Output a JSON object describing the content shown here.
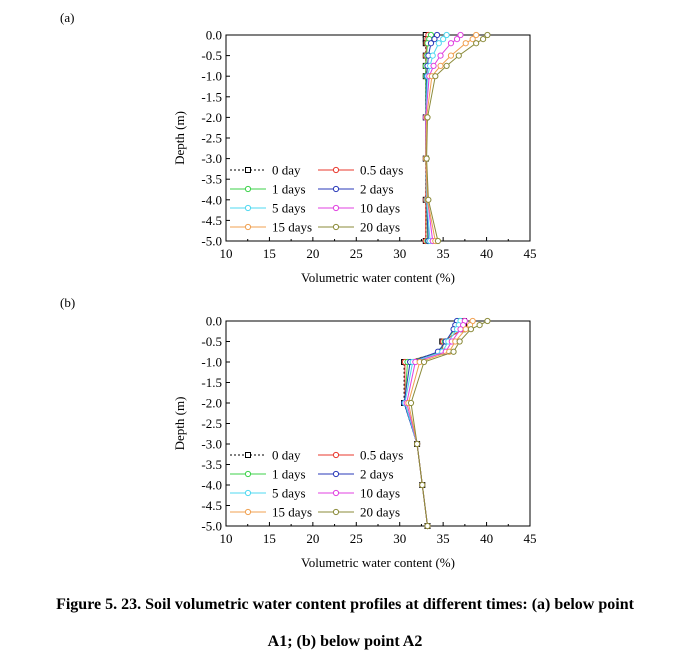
{
  "caption": {
    "line1": "Figure 5. 23. Soil volumetric water content profiles at different times: (a) below point",
    "line2": "A1; (b) below point A2"
  },
  "chart_data": [
    {
      "type": "line",
      "panel_label": "(a)",
      "xlabel": "Volumetric water content (%)",
      "ylabel": "Depth (m)",
      "xlim": [
        10,
        45
      ],
      "ylim": [
        -5.0,
        0.0
      ],
      "xticks": [
        "10",
        "15",
        "20",
        "25",
        "30",
        "35",
        "40",
        "45"
      ],
      "yticks": [
        "0.0",
        "-0.5",
        "-1.0",
        "-1.5",
        "-2.0",
        "-2.5",
        "-3.0",
        "-3.5",
        "-4.0",
        "-4.5",
        "-5.0"
      ],
      "grid": false,
      "legend_position": "bottom-left",
      "depths": [
        0.0,
        -0.1,
        -0.2,
        -0.5,
        -0.75,
        -1.0,
        -2.0,
        -3.0,
        -4.0,
        -5.0
      ],
      "series": [
        {
          "name": "0 day",
          "color": "#000000",
          "dash": "2,2",
          "values": [
            33.0,
            33.0,
            33.0,
            33.0,
            33.0,
            33.0,
            33.0,
            33.0,
            33.0,
            33.0
          ]
        },
        {
          "name": "0.5 days",
          "color": "#e8392e",
          "values": [
            33.3,
            33.2,
            33.1,
            33.0,
            33.0,
            33.0,
            33.0,
            33.0,
            33.0,
            33.0
          ]
        },
        {
          "name": "1 days",
          "color": "#3cd24a",
          "values": [
            33.6,
            33.4,
            33.2,
            33.1,
            33.0,
            33.0,
            33.0,
            33.0,
            33.1,
            33.2
          ]
        },
        {
          "name": "2 days",
          "color": "#2a3ab8",
          "values": [
            34.3,
            34.0,
            33.6,
            33.3,
            33.2,
            33.1,
            33.0,
            33.0,
            33.1,
            33.3
          ]
        },
        {
          "name": "5 days",
          "color": "#4fd8f0",
          "values": [
            35.4,
            35.0,
            34.5,
            33.8,
            33.5,
            33.2,
            33.0,
            33.0,
            33.1,
            33.5
          ]
        },
        {
          "name": "10 days",
          "color": "#e040e0",
          "values": [
            37.0,
            36.6,
            35.9,
            34.7,
            33.9,
            33.4,
            33.0,
            33.0,
            33.2,
            33.8
          ]
        },
        {
          "name": "15 days",
          "color": "#f0a050",
          "values": [
            38.8,
            38.4,
            37.6,
            35.9,
            34.7,
            33.7,
            33.1,
            33.0,
            33.2,
            34.1
          ]
        },
        {
          "name": "20 days",
          "color": "#8b8b3a",
          "values": [
            40.1,
            39.6,
            38.8,
            36.8,
            35.4,
            34.1,
            33.2,
            33.1,
            33.3,
            34.4
          ]
        }
      ]
    },
    {
      "type": "line",
      "panel_label": "(b)",
      "xlabel": "Volumetric water content (%)",
      "ylabel": "Depth (m)",
      "xlim": [
        10,
        45
      ],
      "ylim": [
        -5.0,
        0.0
      ],
      "xticks": [
        "10",
        "15",
        "20",
        "25",
        "30",
        "35",
        "40",
        "45"
      ],
      "yticks": [
        "0.0",
        "-0.5",
        "-1.0",
        "-1.5",
        "-2.0",
        "-2.5",
        "-3.0",
        "-3.5",
        "-4.0",
        "-4.5",
        "-5.0"
      ],
      "grid": false,
      "legend_position": "bottom-left",
      "depths": [
        0.0,
        -0.1,
        -0.2,
        -0.5,
        -0.75,
        -1.0,
        -2.0,
        -3.0,
        -4.0,
        -5.0
      ],
      "series": [
        {
          "name": "0 day",
          "color": "#000000",
          "dash": "2,2",
          "values": [
            37.4,
            37.4,
            37.3,
            34.9,
            34.9,
            30.5,
            30.5,
            32.0,
            32.6,
            33.2
          ]
        },
        {
          "name": "0.5 days",
          "color": "#e8392e",
          "values": [
            37.4,
            37.3,
            37.2,
            35.0,
            34.9,
            30.6,
            30.6,
            32.0,
            32.6,
            33.2
          ]
        },
        {
          "name": "1 days",
          "color": "#3cd24a",
          "values": [
            36.9,
            36.7,
            36.4,
            35.2,
            34.6,
            30.9,
            30.6,
            32.0,
            32.6,
            33.2
          ]
        },
        {
          "name": "2 days",
          "color": "#2a3ab8",
          "values": [
            36.6,
            36.4,
            36.2,
            35.3,
            34.4,
            31.2,
            30.5,
            32.0,
            32.6,
            33.2
          ]
        },
        {
          "name": "5 days",
          "color": "#4fd8f0",
          "values": [
            37.0,
            36.8,
            36.6,
            35.6,
            34.9,
            31.5,
            30.6,
            32.0,
            32.6,
            33.2
          ]
        },
        {
          "name": "10 days",
          "color": "#e040e0",
          "values": [
            37.5,
            37.3,
            37.0,
            36.0,
            35.3,
            31.8,
            30.8,
            32.0,
            32.6,
            33.2
          ]
        },
        {
          "name": "15 days",
          "color": "#f0a050",
          "values": [
            38.4,
            38.1,
            37.6,
            36.4,
            35.7,
            32.3,
            31.0,
            32.0,
            32.6,
            33.2
          ]
        },
        {
          "name": "20 days",
          "color": "#8b8b3a",
          "values": [
            40.1,
            39.2,
            38.2,
            36.9,
            36.2,
            32.8,
            31.3,
            32.0,
            32.6,
            33.2
          ]
        }
      ]
    }
  ]
}
